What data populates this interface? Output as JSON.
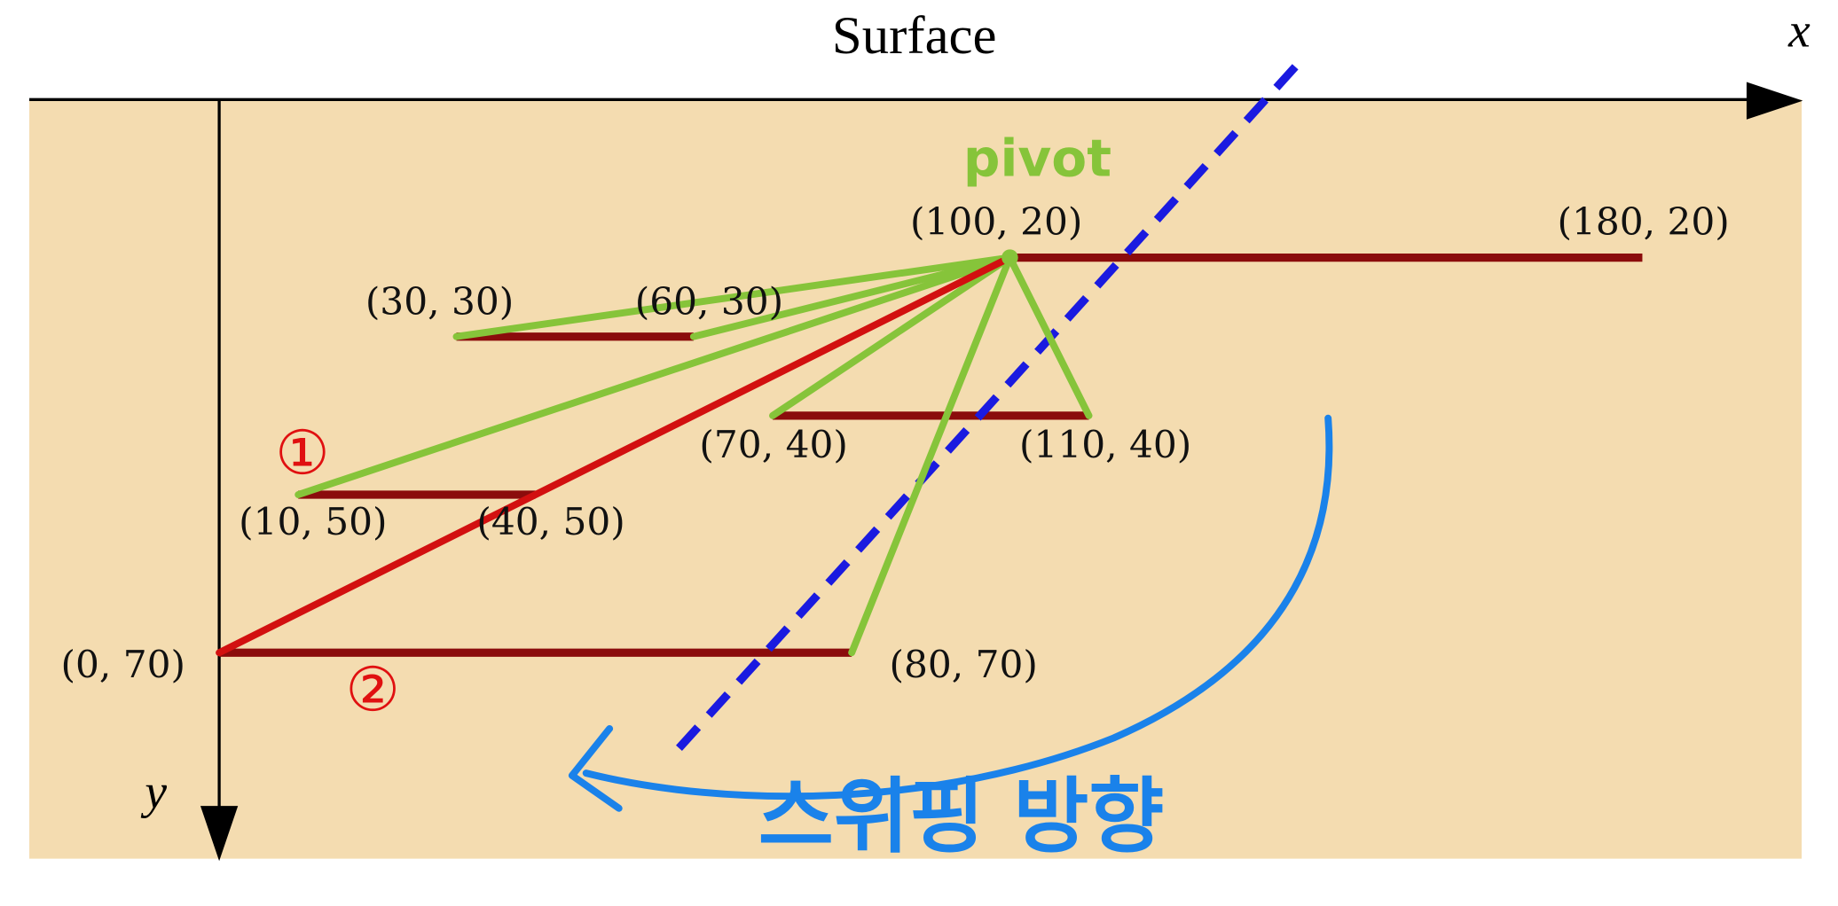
{
  "title": "Surface",
  "x_axis_label": "x",
  "y_axis_label": "y",
  "points": [
    {
      "label": "(100, 20)",
      "x": 100,
      "y": 20
    },
    {
      "label": "(180, 20)",
      "x": 180,
      "y": 20
    },
    {
      "label": "(30, 30)",
      "x": 30,
      "y": 30
    },
    {
      "label": "(60, 30)",
      "x": 60,
      "y": 30
    },
    {
      "label": "(70, 40)",
      "x": 70,
      "y": 40
    },
    {
      "label": "(110, 40)",
      "x": 110,
      "y": 40
    },
    {
      "label": "(10, 50)",
      "x": 10,
      "y": 50
    },
    {
      "label": "(40, 50)",
      "x": 40,
      "y": 50
    },
    {
      "label": "(0, 70)",
      "x": 0,
      "y": 70
    },
    {
      "label": "(80, 70)",
      "x": 80,
      "y": 70
    }
  ],
  "annotations": {
    "pivot": "pivot",
    "first": "①",
    "second": "②",
    "sweep_direction": "스위핑 방향"
  }
}
